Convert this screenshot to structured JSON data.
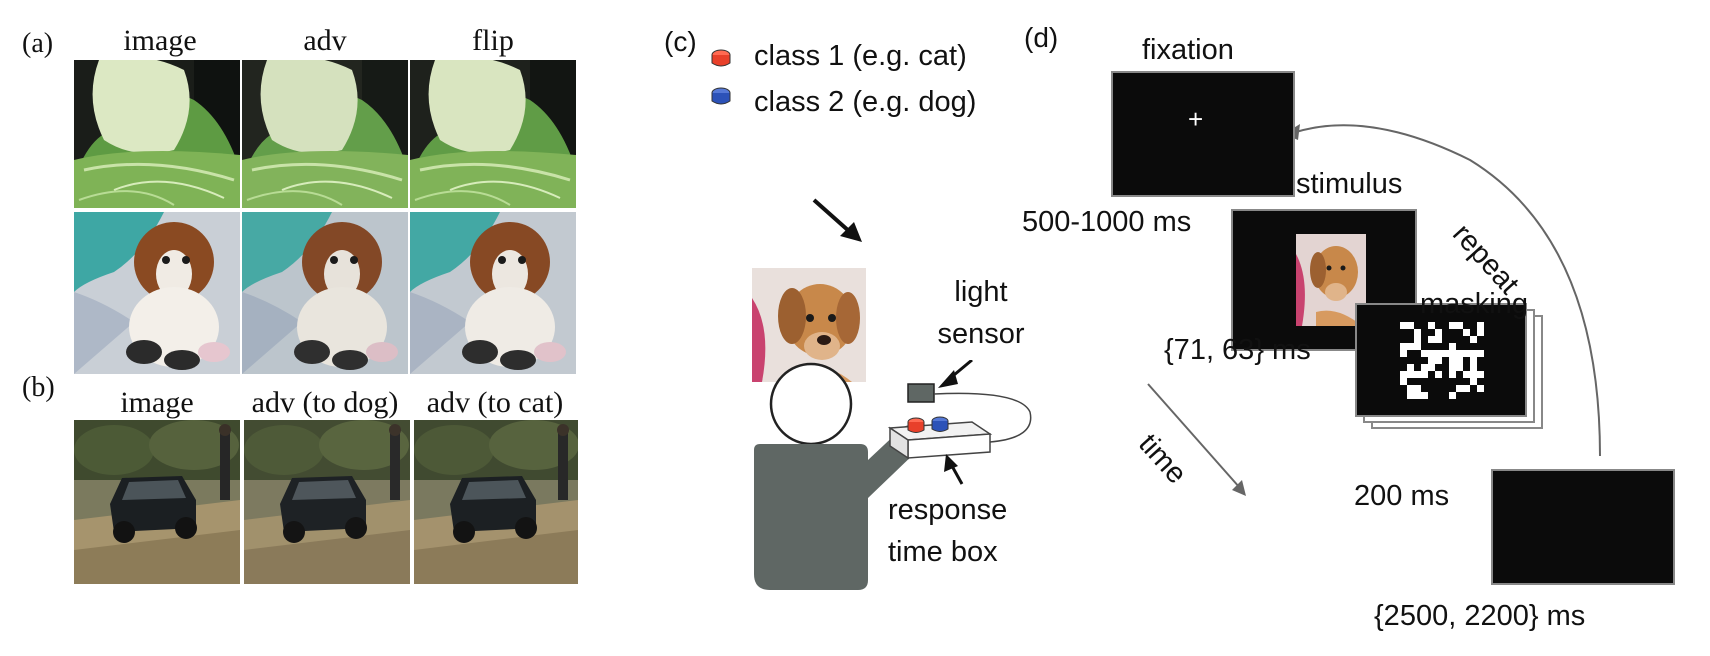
{
  "panel_a": {
    "letter": "(a)",
    "columns": [
      "image",
      "adv",
      "flip"
    ],
    "rows": [
      {
        "subject": "napa cabbage photo",
        "noise": [
          "none",
          "adversarial",
          "flip"
        ]
      },
      {
        "subject": "dog on blanket photo",
        "noise": [
          "none",
          "adversarial",
          "flip"
        ]
      }
    ]
  },
  "panel_b": {
    "letter": "(b)",
    "columns": [
      "image",
      "adv (to dog)",
      "adv (to cat)"
    ],
    "rows": [
      {
        "subject": "black suv offroad photo"
      }
    ]
  },
  "panel_c": {
    "letter": "(c)",
    "legend": [
      {
        "label": "class 1 (e.g. cat)",
        "color": "#e8402a"
      },
      {
        "label": "class 2 (e.g. dog)",
        "color": "#2c52b8"
      }
    ],
    "light_sensor_line1": "light",
    "light_sensor_line2": "sensor",
    "response_box_line1": "response",
    "response_box_line2": "time box",
    "person_color": "#5f6764"
  },
  "panel_d": {
    "letter": "(d)",
    "fixation_label": "fixation",
    "fixation_symbol": "+",
    "stimulus_label": "stimulus",
    "masking_label": "masking",
    "repeat_label": "repeat",
    "time_label": "time",
    "fixation_duration": "500-1000 ms",
    "stimulus_duration": "{71, 63} ms",
    "mask_duration": "200 ms",
    "blank_duration": "{2500, 2200} ms",
    "screen_color": "#0b0b0b"
  }
}
